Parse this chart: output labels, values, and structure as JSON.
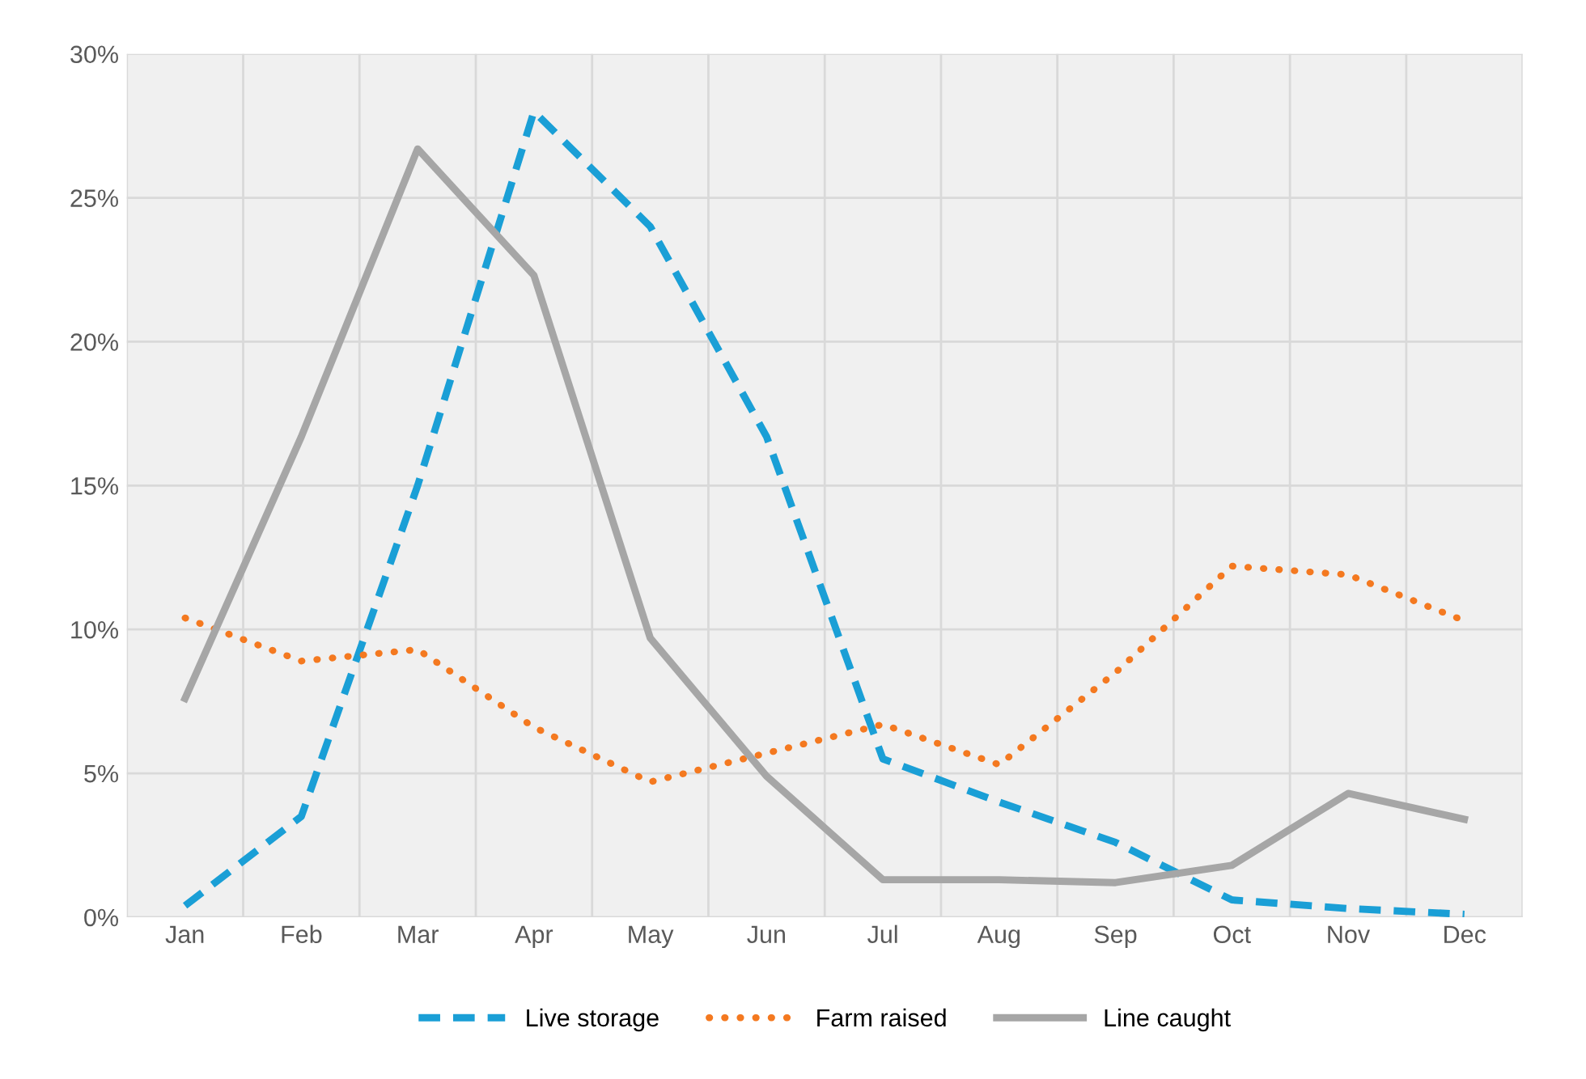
{
  "chart_data": {
    "type": "line",
    "categories": [
      "Jan",
      "Feb",
      "Mar",
      "Apr",
      "May",
      "Jun",
      "Jul",
      "Aug",
      "Sep",
      "Oct",
      "Nov",
      "Dec"
    ],
    "series": [
      {
        "name": "Live storage",
        "color": "#1a9fd6",
        "line_style": "dashed",
        "values": [
          0.4,
          3.5,
          15,
          28,
          24,
          16.7,
          5.5,
          4,
          2.6,
          0.6,
          0.3,
          0.1
        ]
      },
      {
        "name": "Farm raised",
        "color": "#f47920",
        "line_style": "dotted",
        "values": [
          10.4,
          8.9,
          9.3,
          6.6,
          4.7,
          5.7,
          6.7,
          5.3,
          8.5,
          12.2,
          11.9,
          10.3
        ]
      },
      {
        "name": "Line caught",
        "color": "#a6a6a6",
        "line_style": "solid",
        "values": [
          7.6,
          16.7,
          26.7,
          22.3,
          9.7,
          4.9,
          1.3,
          1.3,
          1.2,
          1.8,
          4.3,
          3.4
        ]
      }
    ],
    "ylim": [
      0,
      30
    ],
    "yticks": [
      {
        "value": 0,
        "label": "0%"
      },
      {
        "value": 5,
        "label": "5%"
      },
      {
        "value": 10,
        "label": "10%"
      },
      {
        "value": 15,
        "label": "15%"
      },
      {
        "value": 20,
        "label": "20%"
      },
      {
        "value": 25,
        "label": "25%"
      },
      {
        "value": 30,
        "label": "30%"
      }
    ],
    "grid": true,
    "legend": "bottom",
    "marker": "none"
  }
}
